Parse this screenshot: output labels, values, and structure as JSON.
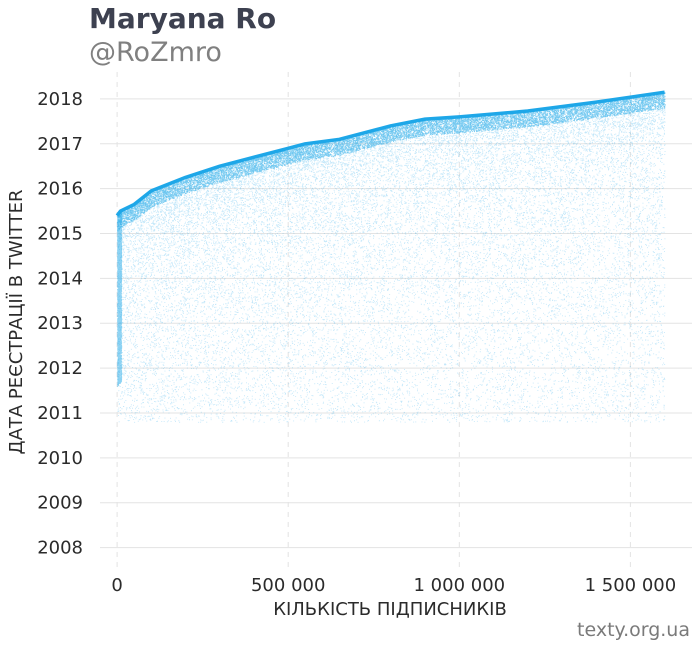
{
  "header": {
    "title": "Maryana Ro",
    "subtitle": "@RoZmro"
  },
  "footer": {
    "source": "texty.org.ua"
  },
  "colors": {
    "points": "#1ea7e8",
    "grid": "#e3e3e3",
    "title": "#3d4150",
    "subtitle": "#808080"
  },
  "chart_data": {
    "type": "scatter",
    "xlabel": "КІЛЬКІСТЬ ПІДПИСНИКІВ",
    "ylabel": "ДАТА РЕЄСТРАЦІЇ В TWITTER",
    "xlim": [
      -50000,
      1680000
    ],
    "ylim": [
      2007.5,
      2018.6
    ],
    "x_ticks": [
      0,
      500000,
      1000000,
      1500000
    ],
    "x_tick_labels": [
      "0",
      "500 000",
      "1 000 000",
      "1 500 000"
    ],
    "y_ticks": [
      2008,
      2009,
      2010,
      2011,
      2012,
      2013,
      2014,
      2015,
      2016,
      2017,
      2018
    ],
    "grid": "on",
    "series": [
      {
        "upper_envelope": [
          {
            "x": 0,
            "y": 2015.4
          },
          {
            "x": 10000,
            "y": 2015.5
          },
          {
            "x": 50000,
            "y": 2015.65
          },
          {
            "x": 100000,
            "y": 2015.95
          },
          {
            "x": 200000,
            "y": 2016.25
          },
          {
            "x": 300000,
            "y": 2016.5
          },
          {
            "x": 400000,
            "y": 2016.7
          },
          {
            "x": 500000,
            "y": 2016.9
          },
          {
            "x": 550000,
            "y": 2017.0
          },
          {
            "x": 650000,
            "y": 2017.1
          },
          {
            "x": 800000,
            "y": 2017.4
          },
          {
            "x": 900000,
            "y": 2017.55
          },
          {
            "x": 1000000,
            "y": 2017.6
          },
          {
            "x": 1200000,
            "y": 2017.73
          },
          {
            "x": 1400000,
            "y": 2017.93
          },
          {
            "x": 1600000,
            "y": 2018.15
          }
        ]
      }
    ]
  }
}
